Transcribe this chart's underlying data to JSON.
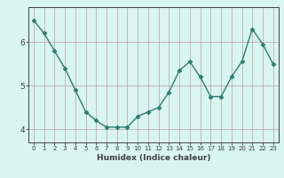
{
  "x": [
    0,
    1,
    2,
    3,
    4,
    5,
    6,
    7,
    8,
    9,
    10,
    11,
    12,
    13,
    14,
    15,
    16,
    17,
    18,
    19,
    20,
    21,
    22,
    23
  ],
  "y": [
    6.5,
    6.2,
    5.8,
    5.4,
    4.9,
    4.4,
    4.2,
    4.05,
    4.05,
    4.05,
    4.3,
    4.4,
    4.5,
    4.85,
    5.35,
    5.55,
    5.2,
    4.75,
    4.75,
    5.2,
    5.55,
    6.3,
    5.95,
    5.5
  ],
  "xlabel": "Humidex (Indice chaleur)",
  "ylim": [
    3.7,
    6.8
  ],
  "xlim": [
    -0.5,
    23.5
  ],
  "yticks": [
    4,
    5,
    6
  ],
  "xticks": [
    0,
    1,
    2,
    3,
    4,
    5,
    6,
    7,
    8,
    9,
    10,
    11,
    12,
    13,
    14,
    15,
    16,
    17,
    18,
    19,
    20,
    21,
    22,
    23
  ],
  "line_color": "#2e7d6e",
  "marker_color": "#2e7d6e",
  "bg_color": "#d8f5f0",
  "grid_color": "#c0a0a0",
  "axis_color": "#404040",
  "marker": "D",
  "marker_size": 2.5,
  "line_width": 1.0
}
